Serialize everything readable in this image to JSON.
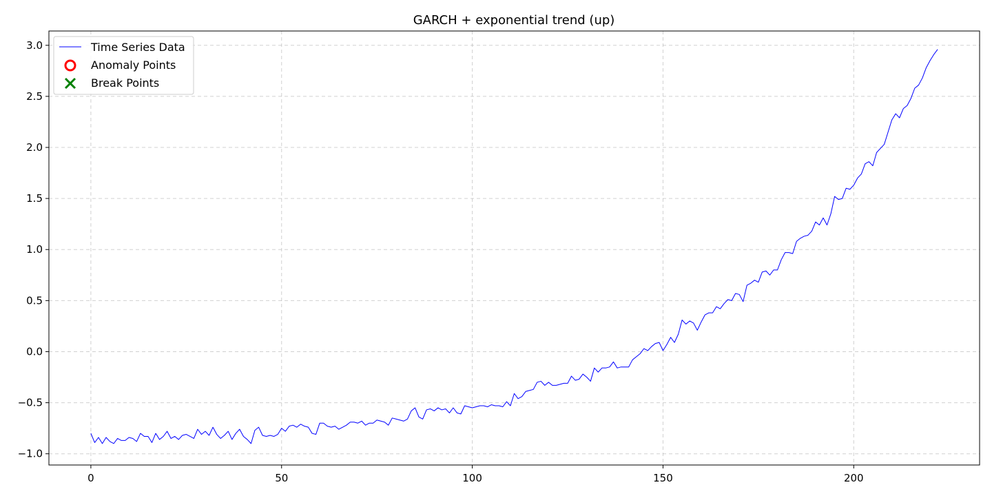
{
  "chart_data": {
    "type": "line",
    "title": "GARCH + exponential trend (up)",
    "xlabel": "",
    "ylabel": "",
    "xlim": [
      -11,
      233
    ],
    "ylim": [
      -1.11,
      3.14
    ],
    "x_ticks": [
      0,
      50,
      100,
      150,
      200
    ],
    "x_tick_labels": [
      "0",
      "50",
      "100",
      "150",
      "200"
    ],
    "y_ticks": [
      -1.0,
      -0.5,
      0.0,
      0.5,
      1.0,
      1.5,
      2.0,
      2.5,
      3.0
    ],
    "y_tick_labels": [
      "−1.0",
      "−0.5",
      "0.0",
      "0.5",
      "1.0",
      "1.5",
      "2.0",
      "2.5",
      "3.0"
    ],
    "grid": true,
    "legend": {
      "placement": "top-left",
      "entries": [
        {
          "label": "Time Series Data",
          "marker": "line",
          "color": "#0000ff"
        },
        {
          "label": "Anomaly Points",
          "marker": "circle",
          "color": "#ff0000"
        },
        {
          "label": "Break Points",
          "marker": "x",
          "color": "#008000"
        }
      ]
    },
    "series": [
      {
        "name": "Time Series Data",
        "color": "#0000ff",
        "x_start": 0,
        "x_step": 1,
        "values": [
          -0.8,
          -0.89,
          -0.84,
          -0.9,
          -0.84,
          -0.88,
          -0.9,
          -0.85,
          -0.87,
          -0.87,
          -0.84,
          -0.85,
          -0.88,
          -0.8,
          -0.83,
          -0.83,
          -0.89,
          -0.8,
          -0.86,
          -0.83,
          -0.78,
          -0.85,
          -0.83,
          -0.86,
          -0.82,
          -0.81,
          -0.83,
          -0.85,
          -0.76,
          -0.81,
          -0.78,
          -0.82,
          -0.74,
          -0.81,
          -0.85,
          -0.82,
          -0.78,
          -0.86,
          -0.8,
          -0.76,
          -0.83,
          -0.86,
          -0.9,
          -0.77,
          -0.74,
          -0.82,
          -0.83,
          -0.82,
          -0.83,
          -0.81,
          -0.75,
          -0.78,
          -0.73,
          -0.72,
          -0.74,
          -0.71,
          -0.73,
          -0.74,
          -0.8,
          -0.81,
          -0.7,
          -0.7,
          -0.73,
          -0.74,
          -0.73,
          -0.76,
          -0.74,
          -0.72,
          -0.69,
          -0.69,
          -0.7,
          -0.68,
          -0.72,
          -0.7,
          -0.7,
          -0.67,
          -0.68,
          -0.69,
          -0.72,
          -0.65,
          -0.66,
          -0.67,
          -0.68,
          -0.66,
          -0.58,
          -0.55,
          -0.64,
          -0.66,
          -0.57,
          -0.56,
          -0.58,
          -0.55,
          -0.57,
          -0.56,
          -0.6,
          -0.55,
          -0.6,
          -0.61,
          -0.53,
          -0.54,
          -0.55,
          -0.54,
          -0.53,
          -0.53,
          -0.54,
          -0.52,
          -0.53,
          -0.53,
          -0.54,
          -0.49,
          -0.53,
          -0.41,
          -0.46,
          -0.44,
          -0.39,
          -0.38,
          -0.37,
          -0.3,
          -0.29,
          -0.33,
          -0.3,
          -0.33,
          -0.33,
          -0.32,
          -0.31,
          -0.31,
          -0.24,
          -0.28,
          -0.27,
          -0.22,
          -0.25,
          -0.29,
          -0.16,
          -0.2,
          -0.16,
          -0.16,
          -0.15,
          -0.1,
          -0.16,
          -0.15,
          -0.15,
          -0.15,
          -0.08,
          -0.05,
          -0.02,
          0.03,
          0.01,
          0.05,
          0.08,
          0.09,
          0.01,
          0.07,
          0.14,
          0.09,
          0.17,
          0.31,
          0.27,
          0.3,
          0.28,
          0.21,
          0.29,
          0.36,
          0.38,
          0.38,
          0.44,
          0.42,
          0.47,
          0.51,
          0.5,
          0.57,
          0.56,
          0.49,
          0.65,
          0.67,
          0.7,
          0.68,
          0.78,
          0.79,
          0.75,
          0.8,
          0.8,
          0.9,
          0.97,
          0.97,
          0.96,
          1.08,
          1.11,
          1.13,
          1.14,
          1.18,
          1.27,
          1.24,
          1.31,
          1.24,
          1.35,
          1.52,
          1.49,
          1.5,
          1.6,
          1.59,
          1.63,
          1.7,
          1.74,
          1.84,
          1.86,
          1.82,
          1.95,
          1.99,
          2.03,
          2.15,
          2.27,
          2.33,
          2.29,
          2.38,
          2.41,
          2.48,
          2.58,
          2.61,
          2.68,
          2.78,
          2.85,
          2.91,
          2.96
        ]
      }
    ],
    "anomaly_points": [],
    "break_points": []
  }
}
